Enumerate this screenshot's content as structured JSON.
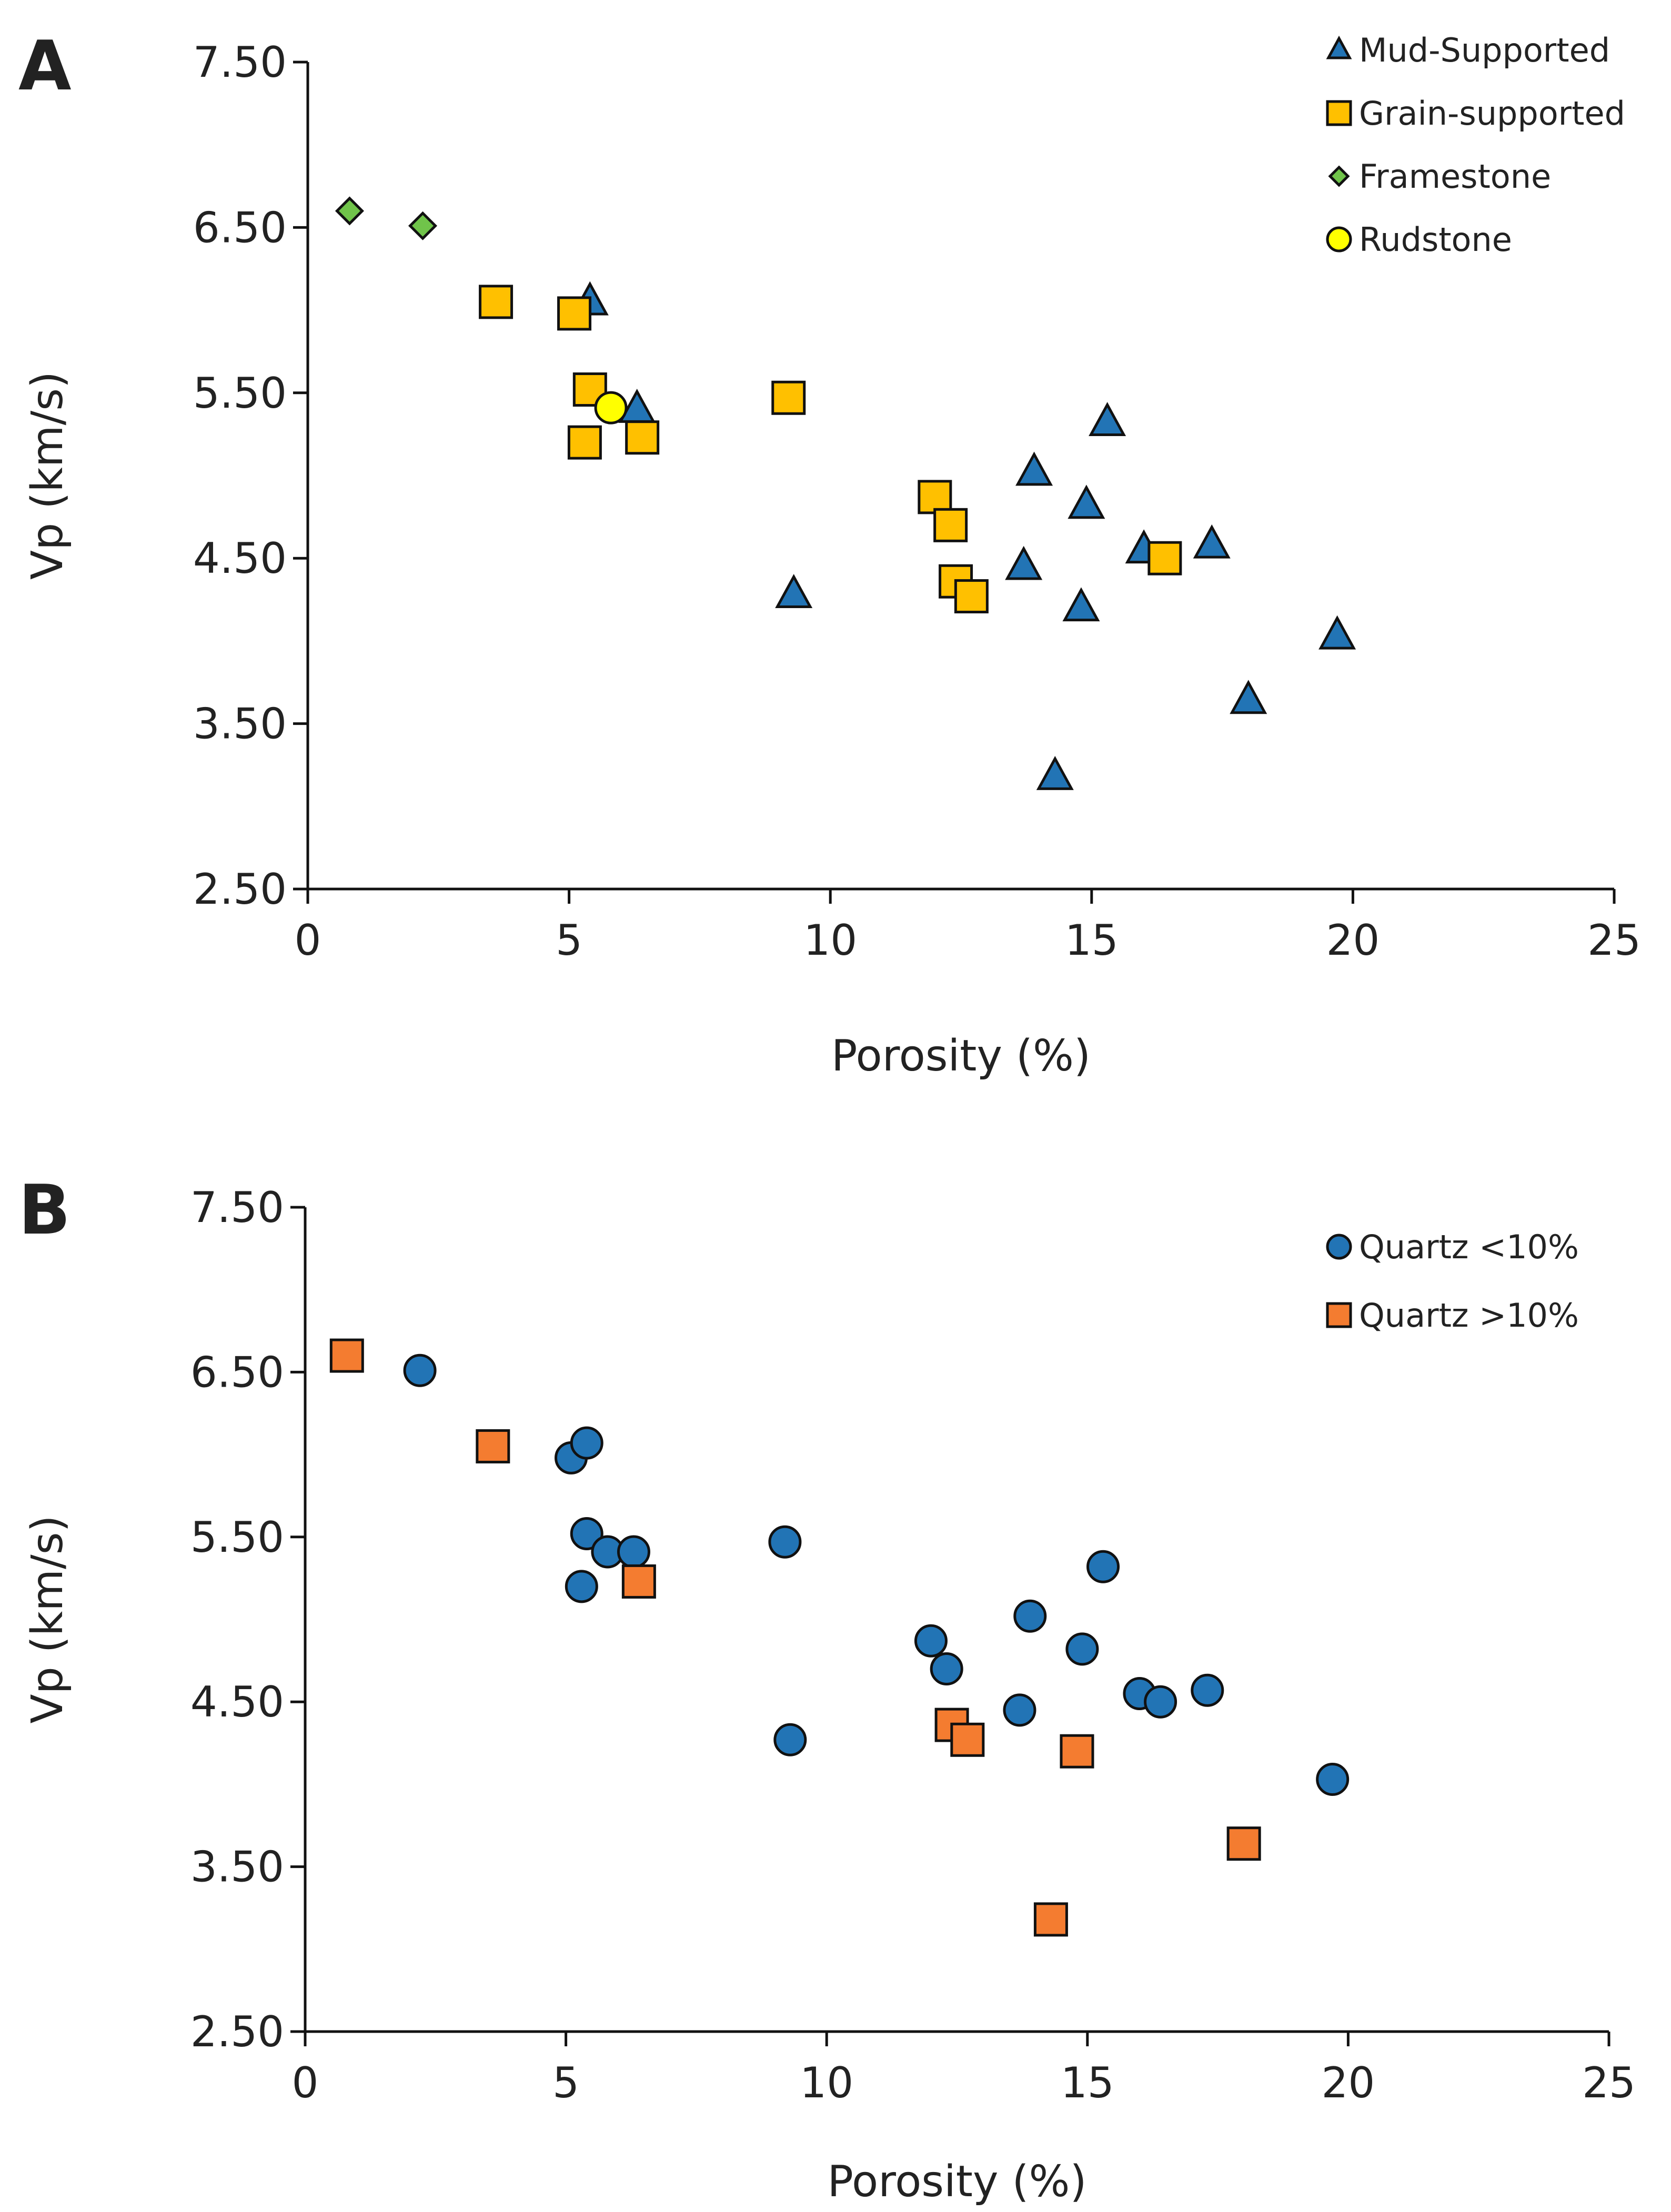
{
  "chart_data": [
    {
      "type": "scatter",
      "panel_label": "A",
      "title": "",
      "xlabel": "Porosity (%)",
      "ylabel": "Vp (km/s)",
      "xlim": [
        0,
        25
      ],
      "ylim": [
        2.5,
        7.5
      ],
      "xticks": [
        0,
        5,
        10,
        15,
        20,
        25
      ],
      "xtick_labels": [
        "0",
        "5",
        "10",
        "15",
        "20",
        "25"
      ],
      "yticks": [
        2.5,
        3.5,
        4.5,
        5.5,
        6.5,
        7.5
      ],
      "ytick_labels": [
        "2.50",
        "3.50",
        "4.50",
        "5.50",
        "6.50",
        "7.50"
      ],
      "grid": false,
      "legend_position": "top-right",
      "series": [
        {
          "name": "Mud-Supported",
          "marker": "triangle",
          "color": "#2274b5",
          "points": [
            [
              5.4,
              6.05
            ],
            [
              6.3,
              5.4
            ],
            [
              9.3,
              4.28
            ],
            [
              13.7,
              4.45
            ],
            [
              13.9,
              5.02
            ],
            [
              14.3,
              3.18
            ],
            [
              14.8,
              4.2
            ],
            [
              14.9,
              4.82
            ],
            [
              15.3,
              5.32
            ],
            [
              16.0,
              4.55
            ],
            [
              17.3,
              4.58
            ],
            [
              18.0,
              3.64
            ],
            [
              19.7,
              4.03
            ]
          ]
        },
        {
          "name": "Grain-supported",
          "marker": "square",
          "color": "#ffc000",
          "points": [
            [
              3.6,
              6.05
            ],
            [
              5.1,
              5.98
            ],
            [
              5.4,
              5.52
            ],
            [
              5.3,
              5.2
            ],
            [
              6.4,
              5.23
            ],
            [
              9.2,
              5.47
            ],
            [
              12.0,
              4.87
            ],
            [
              12.3,
              4.7
            ],
            [
              12.4,
              4.36
            ],
            [
              12.7,
              4.27
            ],
            [
              16.4,
              4.5
            ]
          ]
        },
        {
          "name": "Framestone",
          "marker": "diamond",
          "color": "#70c44a",
          "points": [
            [
              0.8,
              6.6
            ],
            [
              2.2,
              6.51
            ]
          ]
        },
        {
          "name": "Rudstone",
          "marker": "circle",
          "color": "#ffff00",
          "points": [
            [
              5.8,
              5.41
            ]
          ]
        }
      ]
    },
    {
      "type": "scatter",
      "panel_label": "B",
      "title": "",
      "xlabel": "Porosity (%)",
      "ylabel": "Vp (km/s)",
      "xlim": [
        0,
        25
      ],
      "ylim": [
        2.5,
        7.5
      ],
      "xticks": [
        0,
        5,
        10,
        15,
        20,
        25
      ],
      "xtick_labels": [
        "0",
        "5",
        "10",
        "15",
        "20",
        "25"
      ],
      "yticks": [
        2.5,
        3.5,
        4.5,
        5.5,
        6.5,
        7.5
      ],
      "ytick_labels": [
        "2.50",
        "3.50",
        "4.50",
        "5.50",
        "6.50",
        "7.50"
      ],
      "grid": false,
      "legend_position": "top-right",
      "series": [
        {
          "name": "Quartz <10%",
          "marker": "circle",
          "color": "#2274b5",
          "points": [
            [
              2.2,
              6.51
            ],
            [
              5.1,
              5.98
            ],
            [
              5.4,
              6.07
            ],
            [
              5.4,
              5.52
            ],
            [
              5.3,
              5.2
            ],
            [
              5.8,
              5.41
            ],
            [
              6.3,
              5.41
            ],
            [
              9.2,
              5.47
            ],
            [
              9.3,
              4.27
            ],
            [
              12.0,
              4.87
            ],
            [
              12.3,
              4.7
            ],
            [
              13.7,
              4.45
            ],
            [
              13.9,
              5.02
            ],
            [
              14.9,
              4.82
            ],
            [
              15.3,
              5.32
            ],
            [
              16.0,
              4.55
            ],
            [
              16.4,
              4.5
            ],
            [
              17.3,
              4.57
            ],
            [
              19.7,
              4.03
            ]
          ]
        },
        {
          "name": "Quartz >10%",
          "marker": "square",
          "color": "#f47c30",
          "points": [
            [
              0.8,
              6.6
            ],
            [
              3.6,
              6.05
            ],
            [
              6.4,
              5.23
            ],
            [
              12.4,
              4.36
            ],
            [
              12.7,
              4.27
            ],
            [
              14.3,
              3.18
            ],
            [
              14.8,
              4.2
            ],
            [
              18.0,
              3.64
            ]
          ]
        }
      ]
    }
  ]
}
